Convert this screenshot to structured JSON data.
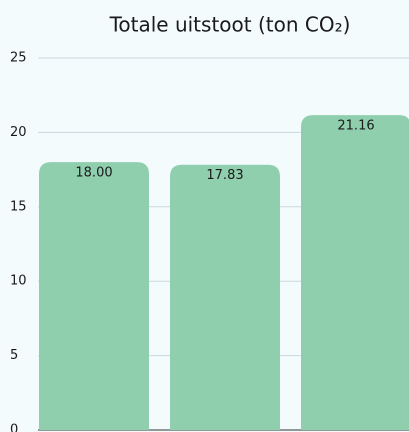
{
  "chart_data": {
    "type": "bar",
    "title": "Totale uitstoot (ton CO₂)",
    "categories": [
      null,
      null,
      null
    ],
    "values": [
      18,
      17.83,
      21.16
    ],
    "value_labels": [
      "18.00",
      "17.83",
      "21.16"
    ],
    "color": "#8fcfad",
    "ylim": [
      0,
      25
    ],
    "yticks": [
      0,
      5,
      10,
      15,
      20,
      25
    ],
    "grid": true
  }
}
